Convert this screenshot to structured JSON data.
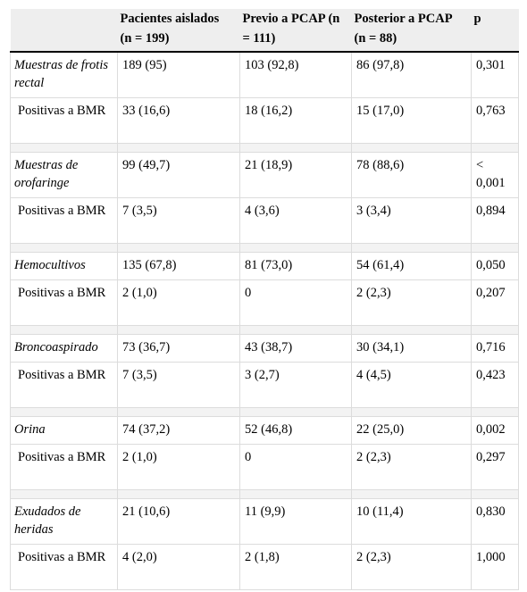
{
  "table": {
    "headers": [
      {
        "line1": "",
        "line2": ""
      },
      {
        "line1": "Pacientes aislados",
        "line2": "(n = 199)"
      },
      {
        "line1": "Previo a PCAP (n",
        "line2": "= 111)"
      },
      {
        "line1": "Posterior a PCAP",
        "line2": "(n = 88)"
      },
      {
        "line1": "p",
        "line2": ""
      }
    ],
    "groups": [
      {
        "label": "Muestras de frotis rectal",
        "values": [
          "189 (95)",
          "103 (92,8)",
          "86 (97,8)",
          "0,301"
        ],
        "sub": {
          "label": "Positivas a BMR",
          "values": [
            "33 (16,6)",
            "18 (16,2)",
            "15 (17,0)",
            "0,763"
          ]
        }
      },
      {
        "label": "Muestras de orofaringe",
        "values": [
          "99 (49,7)",
          "21 (18,9)",
          "78 (88,6)",
          "< 0,001"
        ],
        "sub": {
          "label": "Positivas a BMR",
          "values": [
            "7 (3,5)",
            "4 (3,6)",
            "3 (3,4)",
            "0,894"
          ]
        }
      },
      {
        "label": "Hemocultivos",
        "values": [
          "135 (67,8)",
          "81 (73,0)",
          "54 (61,4)",
          "0,050"
        ],
        "sub": {
          "label": "Positivas a BMR",
          "values": [
            "2 (1,0)",
            "0",
            "2 (2,3)",
            "0,207"
          ]
        }
      },
      {
        "label": "Broncoaspirado",
        "values": [
          "73 (36,7)",
          "43 (38,7)",
          "30 (34,1)",
          "0,716"
        ],
        "sub": {
          "label": "Positivas a BMR",
          "values": [
            "7 (3,5)",
            "3 (2,7)",
            "4 (4,5)",
            "0,423"
          ]
        }
      },
      {
        "label": "Orina",
        "values": [
          "74 (37,2)",
          "52 (46,8)",
          "22 (25,0)",
          "0,002"
        ],
        "sub": {
          "label": "Positivas a BMR",
          "values": [
            "2 (1,0)",
            "0",
            "2 (2,3)",
            "0,297"
          ]
        }
      },
      {
        "label": "Exudados de heridas",
        "values": [
          "21 (10,6)",
          "11 (9,9)",
          "10 (11,4)",
          "0,830"
        ],
        "sub": {
          "label": "Positivas a BMR",
          "values": [
            "4 (2,0)",
            "2 (1,8)",
            "2 (2,3)",
            "1,000"
          ]
        }
      }
    ]
  }
}
